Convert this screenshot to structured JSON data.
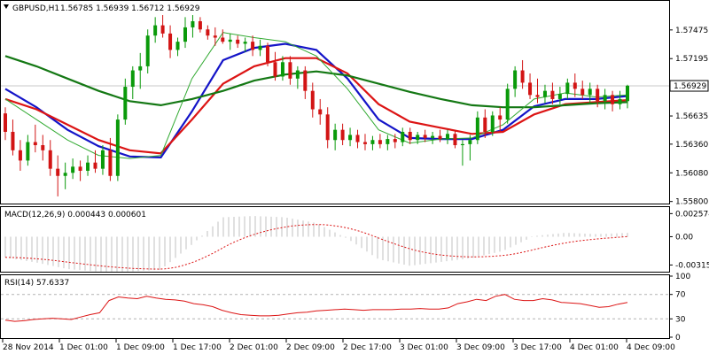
{
  "header": {
    "symbol_label": "GBPUSD,H1",
    "ohlc_label": "1.56785 1.56939 1.56712 1.56929"
  },
  "indicators": {
    "macd_label": "MACD(12,26,9) 0.000443 0.000601",
    "rsi_label": "RSI(14) 57.6337"
  },
  "chart_data": [
    {
      "type": "candlestick",
      "title": "GBPUSD,H1",
      "y_ticks": [
        "1.57475",
        "1.57195",
        "1.56635",
        "1.56360",
        "1.56080",
        "1.55800"
      ],
      "ylim": [
        1.5578,
        1.5775
      ],
      "current_price": 1.56929,
      "current_price_label": "1.56929",
      "x_ticks": [
        "28 Nov 2014",
        "1 Dec 01:00",
        "1 Dec 09:00",
        "1 Dec 17:00",
        "2 Dec 01:00",
        "2 Dec 09:00",
        "2 Dec 17:00",
        "3 Dec 01:00",
        "3 Dec 09:00",
        "3 Dec 17:00",
        "4 Dec 01:00",
        "4 Dec 09:00"
      ],
      "moving_averages": [
        {
          "color": "#1414c8",
          "values": [
            1.569,
            1.5672,
            1.565,
            1.5634,
            1.5624,
            1.5623,
            1.5668,
            1.5718,
            1.573,
            1.5734,
            1.5728,
            1.57,
            1.566,
            1.5642,
            1.5641,
            1.5641,
            1.565,
            1.5673,
            1.568,
            1.568,
            1.5683
          ]
        },
        {
          "color": "#dc1414",
          "values": [
            1.568,
            1.567,
            1.5655,
            1.564,
            1.563,
            1.5627,
            1.566,
            1.5695,
            1.5712,
            1.572,
            1.572,
            1.5705,
            1.5675,
            1.5658,
            1.5652,
            1.5646,
            1.5648,
            1.5665,
            1.5675,
            1.5677,
            1.5679
          ]
        },
        {
          "color": "#147814",
          "values": [
            1.5722,
            1.5712,
            1.57,
            1.5688,
            1.5678,
            1.5674,
            1.568,
            1.5688,
            1.5698,
            1.5704,
            1.5707,
            1.5703,
            1.5695,
            1.5687,
            1.568,
            1.5674,
            1.5672,
            1.5672,
            1.5674,
            1.5676,
            1.5677
          ]
        },
        {
          "color": "#32aa32",
          "values": [
            1.568,
            1.566,
            1.564,
            1.5625,
            1.5622,
            1.5625,
            1.57,
            1.5745,
            1.574,
            1.5736,
            1.5722,
            1.569,
            1.565,
            1.5637,
            1.5641,
            1.5642,
            1.5655,
            1.568,
            1.5686,
            1.5682,
            1.5684
          ]
        }
      ],
      "candles": [
        [
          1.5666,
          1.5672,
          1.564,
          1.5648
        ],
        [
          1.5648,
          1.566,
          1.5625,
          1.563
        ],
        [
          1.563,
          1.564,
          1.561,
          1.562
        ],
        [
          1.562,
          1.5645,
          1.5615,
          1.5638
        ],
        [
          1.5638,
          1.5655,
          1.5628,
          1.5635
        ],
        [
          1.5635,
          1.5645,
          1.562,
          1.563
        ],
        [
          1.563,
          1.564,
          1.5605,
          1.5612
        ],
        [
          1.5612,
          1.5625,
          1.5585,
          1.5605
        ],
        [
          1.5605,
          1.5618,
          1.5592,
          1.5608
        ],
        [
          1.5608,
          1.5622,
          1.5602,
          1.5614
        ],
        [
          1.5614,
          1.562,
          1.56,
          1.561
        ],
        [
          1.561,
          1.5625,
          1.5605,
          1.5618
        ],
        [
          1.5618,
          1.563,
          1.5608,
          1.5612
        ],
        [
          1.5612,
          1.5635,
          1.5606,
          1.563
        ],
        [
          1.563,
          1.5642,
          1.56,
          1.5605
        ],
        [
          1.5605,
          1.5665,
          1.56,
          1.566
        ],
        [
          1.566,
          1.57,
          1.5655,
          1.5692
        ],
        [
          1.5692,
          1.5712,
          1.568,
          1.5708
        ],
        [
          1.5708,
          1.5725,
          1.569,
          1.5712
        ],
        [
          1.5712,
          1.5748,
          1.5705,
          1.5742
        ],
        [
          1.5742,
          1.576,
          1.5735,
          1.5752
        ],
        [
          1.5752,
          1.5762,
          1.574,
          1.5744
        ],
        [
          1.5744,
          1.5752,
          1.572,
          1.5728
        ],
        [
          1.5728,
          1.574,
          1.5722,
          1.5736
        ],
        [
          1.5736,
          1.576,
          1.573,
          1.575
        ],
        [
          1.575,
          1.5762,
          1.574,
          1.5756
        ],
        [
          1.5756,
          1.576,
          1.5745,
          1.5748
        ],
        [
          1.5748,
          1.5752,
          1.5738,
          1.5742
        ],
        [
          1.5742,
          1.575,
          1.5732,
          1.574
        ],
        [
          1.574,
          1.5748,
          1.5734,
          1.5736
        ],
        [
          1.5736,
          1.5744,
          1.5728,
          1.5738
        ],
        [
          1.5738,
          1.5742,
          1.573,
          1.5734
        ],
        [
          1.5734,
          1.574,
          1.5726,
          1.5736
        ],
        [
          1.5736,
          1.5742,
          1.5722,
          1.5728
        ],
        [
          1.5728,
          1.5738,
          1.5722,
          1.5732
        ],
        [
          1.5732,
          1.5735,
          1.5712,
          1.5716
        ],
        [
          1.5716,
          1.5726,
          1.5698,
          1.5702
        ],
        [
          1.5702,
          1.5722,
          1.5698,
          1.5716
        ],
        [
          1.5716,
          1.5722,
          1.5694,
          1.57
        ],
        [
          1.57,
          1.5712,
          1.569,
          1.5708
        ],
        [
          1.5708,
          1.5712,
          1.568,
          1.5688
        ],
        [
          1.5688,
          1.5696,
          1.5662,
          1.567
        ],
        [
          1.567,
          1.568,
          1.5655,
          1.5665
        ],
        [
          1.5665,
          1.5672,
          1.5632,
          1.564
        ],
        [
          1.564,
          1.5656,
          1.563,
          1.565
        ],
        [
          1.565,
          1.5656,
          1.5635,
          1.564
        ],
        [
          1.564,
          1.5652,
          1.5634,
          1.5645
        ],
        [
          1.5645,
          1.565,
          1.5632,
          1.5638
        ],
        [
          1.5638,
          1.5646,
          1.563,
          1.5636
        ],
        [
          1.5636,
          1.5644,
          1.563,
          1.564
        ],
        [
          1.564,
          1.5646,
          1.5632,
          1.5636
        ],
        [
          1.5636,
          1.5645,
          1.563,
          1.5641
        ],
        [
          1.5641,
          1.5646,
          1.5632,
          1.5638
        ],
        [
          1.5638,
          1.5652,
          1.5634,
          1.5648
        ],
        [
          1.5648,
          1.5652,
          1.5636,
          1.564
        ],
        [
          1.564,
          1.5648,
          1.5636,
          1.5645
        ],
        [
          1.5645,
          1.565,
          1.5638,
          1.5642
        ],
        [
          1.5642,
          1.5648,
          1.5636,
          1.5644
        ],
        [
          1.5644,
          1.565,
          1.5638,
          1.5641
        ],
        [
          1.5641,
          1.565,
          1.5636,
          1.5646
        ],
        [
          1.5646,
          1.565,
          1.5632,
          1.5635
        ],
        [
          1.5635,
          1.564,
          1.5615,
          1.5636
        ],
        [
          1.5636,
          1.5645,
          1.562,
          1.564
        ],
        [
          1.564,
          1.5668,
          1.5636,
          1.5662
        ],
        [
          1.5662,
          1.567,
          1.5642,
          1.5648
        ],
        [
          1.5648,
          1.5668,
          1.5644,
          1.5664
        ],
        [
          1.5664,
          1.5672,
          1.5648,
          1.566
        ],
        [
          1.566,
          1.5695,
          1.5656,
          1.569
        ],
        [
          1.569,
          1.5712,
          1.5682,
          1.5708
        ],
        [
          1.5708,
          1.5718,
          1.569,
          1.5696
        ],
        [
          1.5696,
          1.5705,
          1.568,
          1.5684
        ],
        [
          1.5684,
          1.57,
          1.5676,
          1.5682
        ],
        [
          1.5682,
          1.5694,
          1.5676,
          1.5688
        ],
        [
          1.5688,
          1.5696,
          1.5675,
          1.568
        ],
        [
          1.568,
          1.5692,
          1.5675,
          1.5685
        ],
        [
          1.5685,
          1.57,
          1.568,
          1.5696
        ],
        [
          1.5696,
          1.5705,
          1.5682,
          1.569
        ],
        [
          1.569,
          1.5698,
          1.568,
          1.5684
        ],
        [
          1.5684,
          1.5696,
          1.5676,
          1.569
        ],
        [
          1.569,
          1.5694,
          1.5672,
          1.5678
        ],
        [
          1.5678,
          1.569,
          1.567,
          1.5684
        ],
        [
          1.5684,
          1.5688,
          1.5668,
          1.5675
        ],
        [
          1.5675,
          1.5688,
          1.567,
          1.568
        ],
        [
          1.5678,
          1.5694,
          1.5671,
          1.5693
        ]
      ]
    },
    {
      "type": "bar",
      "title": "MACD(12,26,9)",
      "y_ticks": [
        "0.002574",
        "0.00",
        "-0.003153"
      ],
      "ylim": [
        -0.0038,
        0.0032
      ],
      "signal_color": "#dc1414"
    },
    {
      "type": "line",
      "title": "RSI(14)",
      "y_ticks": [
        "100",
        "70",
        "30",
        "0"
      ],
      "ylim": [
        0,
        100
      ],
      "levels": [
        70,
        30
      ],
      "series_color": "#dc1414",
      "values": [
        28,
        26,
        27,
        29,
        30,
        31,
        30,
        29,
        33,
        37,
        40,
        60,
        66,
        64,
        63,
        67,
        64,
        62,
        61,
        59,
        55,
        53,
        50,
        44,
        40,
        37,
        36,
        35,
        35,
        36,
        38,
        40,
        41,
        43,
        44,
        45,
        46,
        45,
        44,
        45,
        45,
        45,
        46,
        46,
        47,
        46,
        46,
        48,
        55,
        58,
        62,
        60,
        67,
        70,
        62,
        60,
        60,
        63,
        61,
        57,
        56,
        55,
        52,
        49,
        50,
        54,
        57
      ]
    }
  ]
}
